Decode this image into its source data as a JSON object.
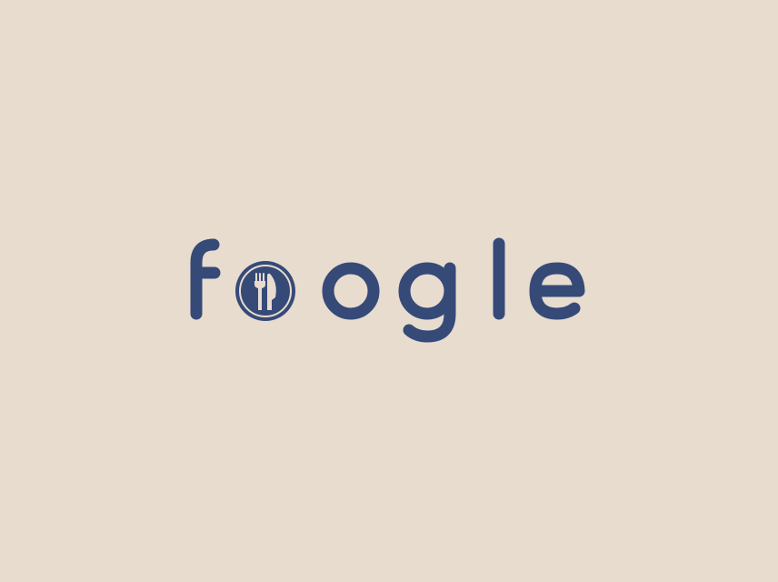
{
  "logo": {
    "wordmark": "foogle",
    "icon": "fork-knife-plate-icon"
  },
  "colors": {
    "background": "#e8dccf",
    "brand": "#364a78"
  }
}
